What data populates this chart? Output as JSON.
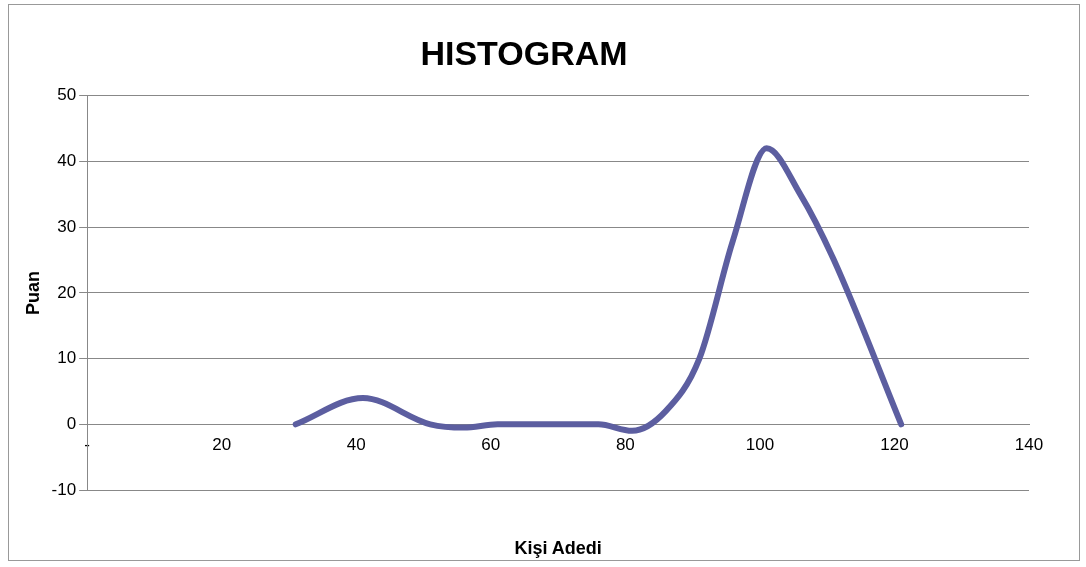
{
  "chart_data": {
    "type": "line",
    "title": "HISTOGRAM",
    "xlabel": "Kişi Adedi",
    "ylabel": "Puan",
    "x": [
      31,
      41,
      51,
      56,
      61,
      71,
      76,
      81,
      86,
      91,
      96,
      101,
      106,
      111,
      121
    ],
    "series": [
      {
        "color": "#5c5ea0",
        "values": [
          0,
          4,
          0,
          -0.5,
          0,
          0,
          0,
          -1,
          2,
          10,
          28,
          42,
          35,
          25,
          0
        ]
      }
    ],
    "xlim": [
      0,
      140
    ],
    "xticks": [
      {
        "value": 0,
        "label": "-"
      },
      20,
      40,
      60,
      80,
      100,
      120,
      140
    ],
    "ylim": [
      -10,
      50
    ],
    "yticks": [
      -10,
      0,
      10,
      20,
      30,
      40,
      50
    ],
    "grid": "y",
    "legend": false,
    "marker": "none",
    "line_style": "solid"
  }
}
